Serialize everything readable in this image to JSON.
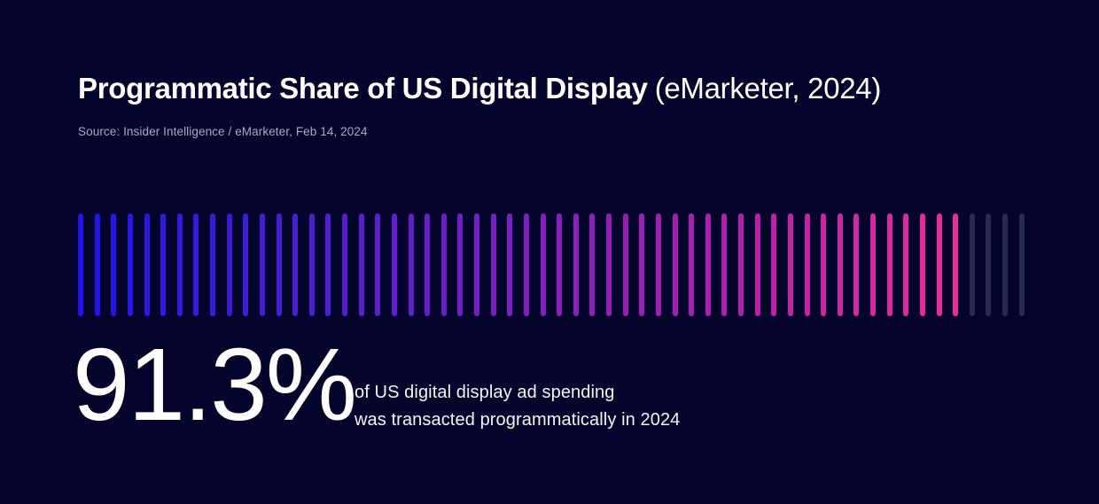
{
  "header": {
    "title_bold": "Programmatic Share of US Digital Display",
    "title_regular": "(eMarketer, 2024)",
    "source": "Source: Insider Intelligence / eMarketer, Feb 14, 2024"
  },
  "chart_data": {
    "type": "bar",
    "variant": "tally-progress",
    "title": "Programmatic Share of US Digital Display (eMarketer, 2024)",
    "percent_value": 91.3,
    "unit": "%",
    "total_bars": 58,
    "filled_bars": 54,
    "unfilled_bars": 4,
    "gradient_stops": [
      "#2015E6",
      "#4A1DD2",
      "#7E1FBF",
      "#B21FAC",
      "#EE2B9B"
    ],
    "unfilled_color": "#262A52",
    "legend": false,
    "grid": false
  },
  "stat": {
    "value": "91.3%",
    "description_line1": "of US digital display ad spending",
    "description_line2": "was transacted programmatically in 2024"
  },
  "colors": {
    "background": "#04032B",
    "title_text": "#FFFFFF",
    "source_text": "#A9ABC4",
    "stat_text": "#FFFFFF"
  }
}
